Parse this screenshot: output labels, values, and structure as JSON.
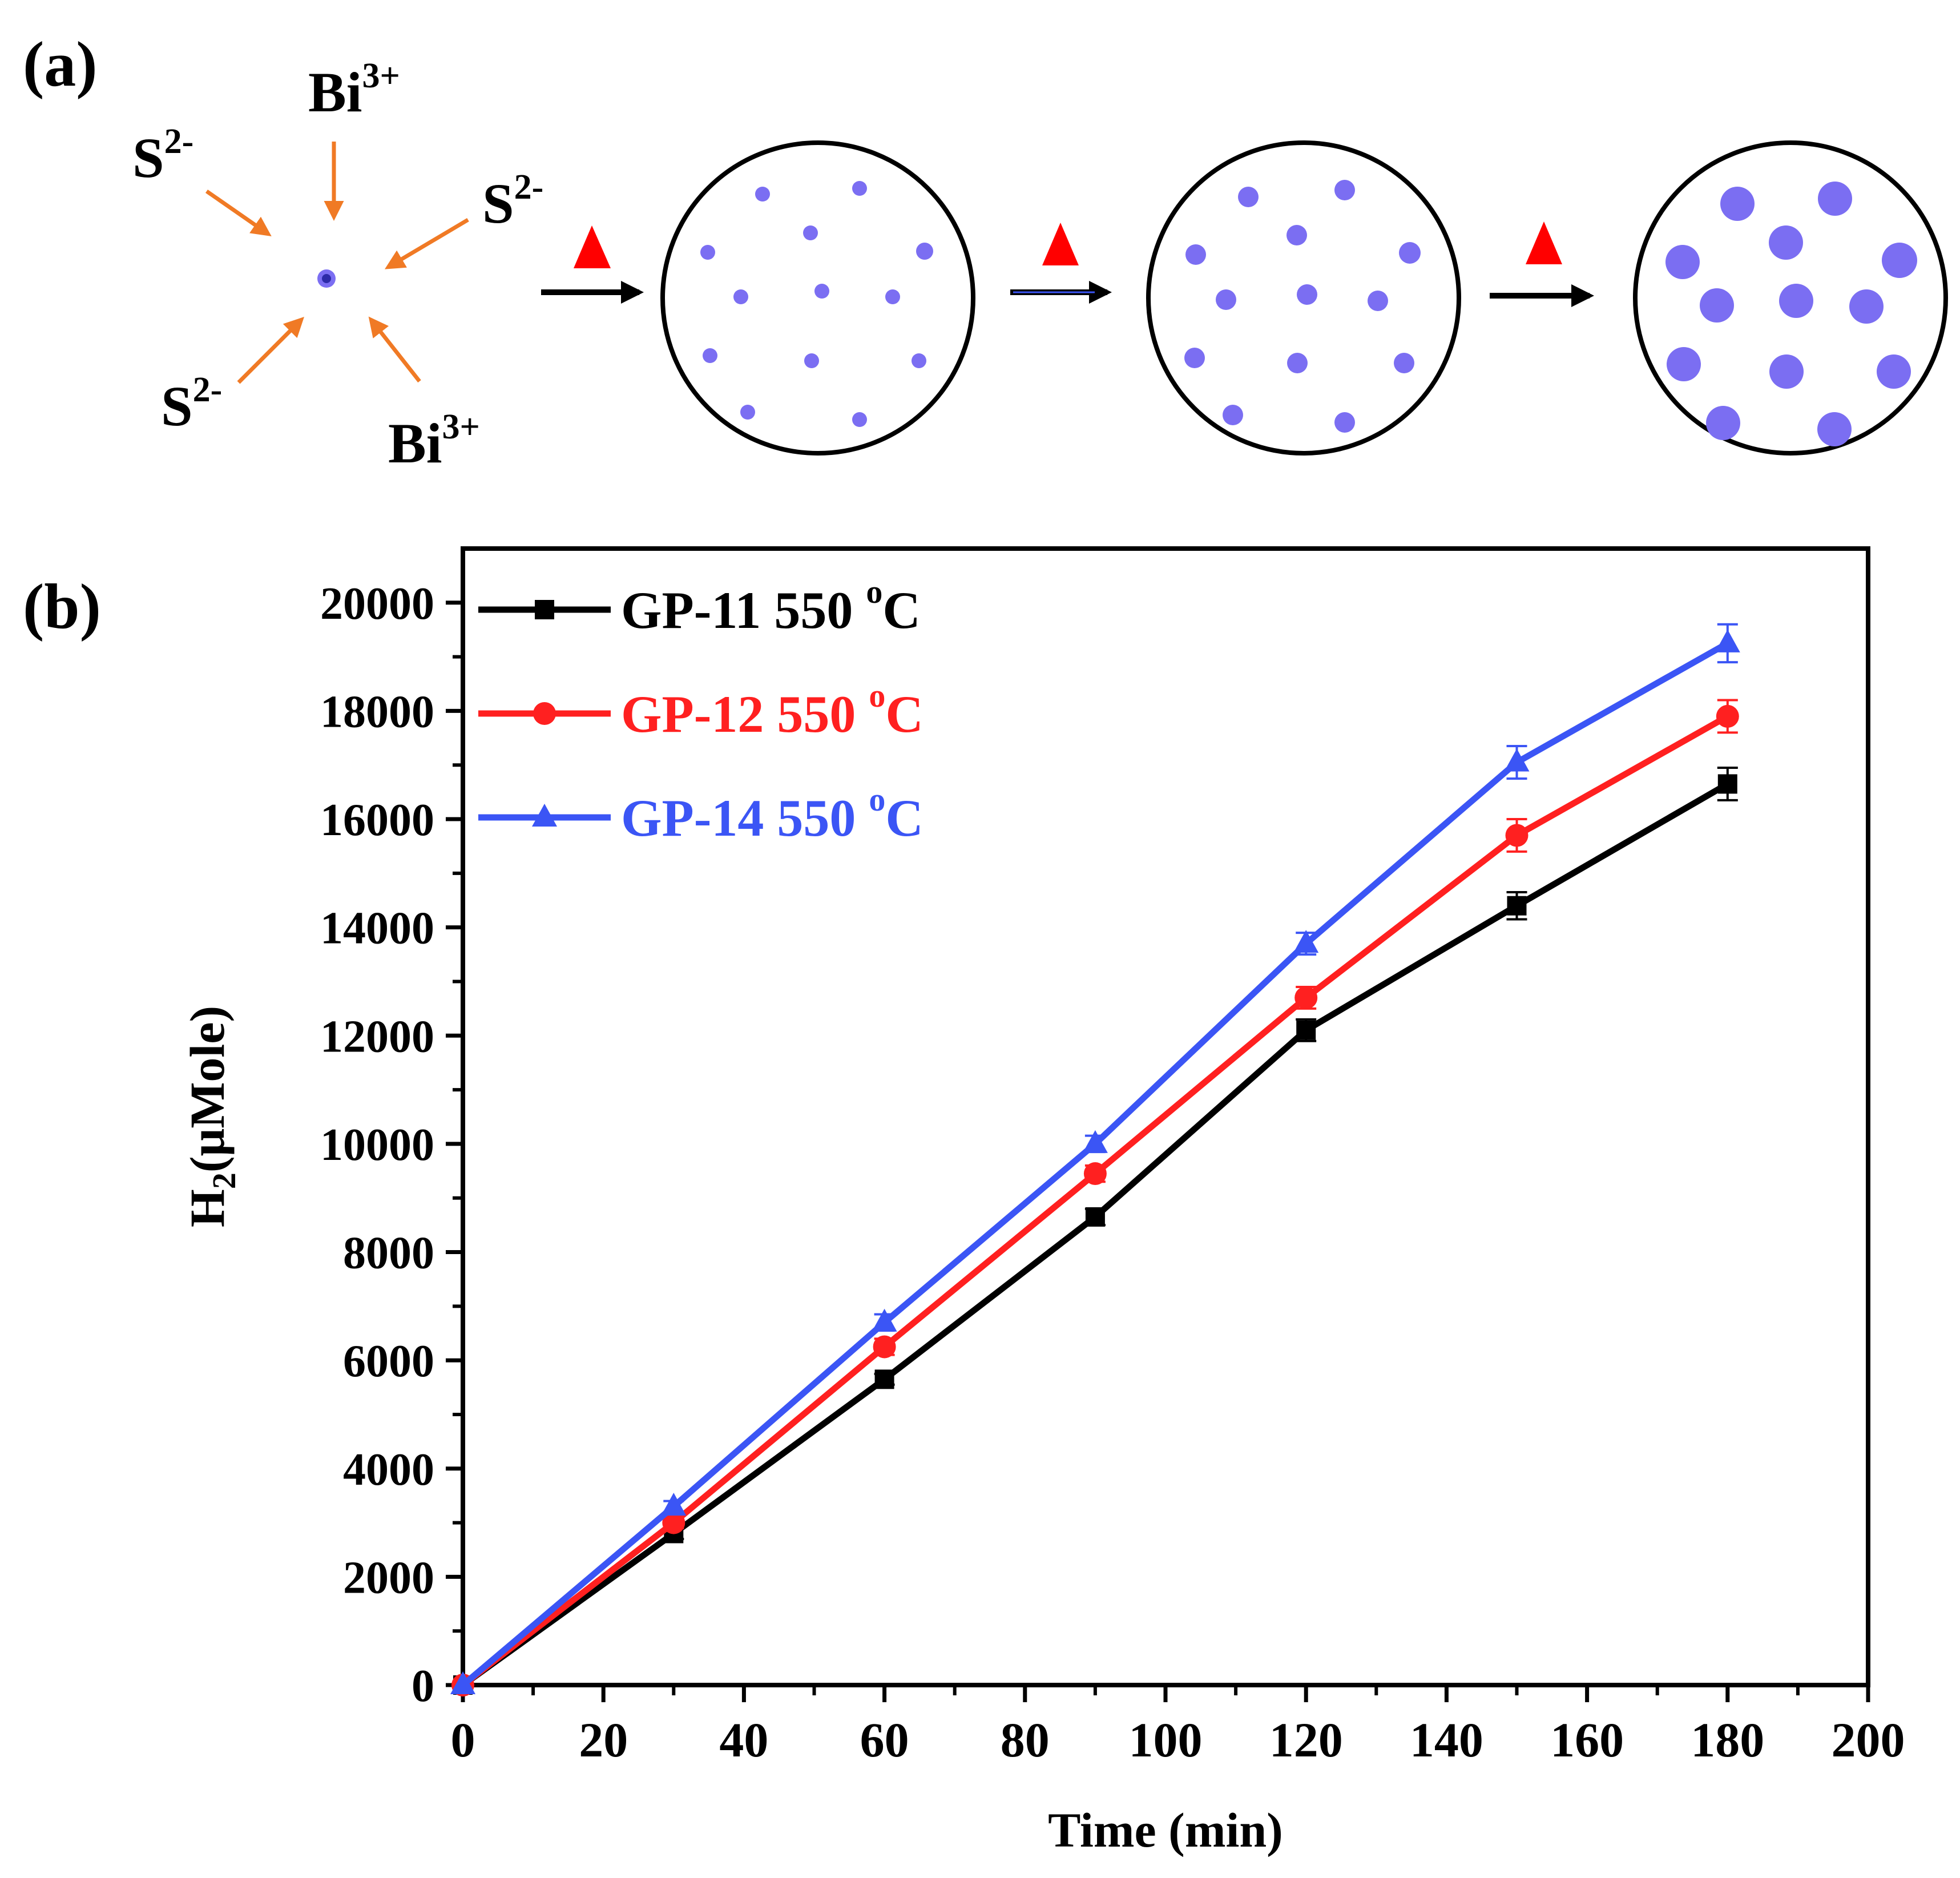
{
  "panel_a": {
    "label": "(a)",
    "ions": [
      {
        "base": "S",
        "sup": "2-"
      },
      {
        "base": "Bi",
        "sup": "3+"
      },
      {
        "base": "S",
        "sup": "2-"
      },
      {
        "base": "S",
        "sup": "2-"
      },
      {
        "base": "Bi",
        "sup": "3+"
      }
    ],
    "steps": [
      {
        "arrow": "heat",
        "particle_size": "small"
      },
      {
        "arrow": "heat",
        "particle_size": "medium"
      },
      {
        "arrow": "heat",
        "particle_size": "large"
      }
    ],
    "colors": {
      "arrow": "#f07a25",
      "heat": "#ff0000",
      "particle": "#7b6ef2",
      "nucleus": "#2d2aa8"
    }
  },
  "panel_b": {
    "label": "(b)",
    "chart_data": {
      "type": "line",
      "xlabel": "Time (min)",
      "ylabel_main": "H",
      "ylabel_sub": "2",
      "ylabel_rest": "(μMole)",
      "xlim": [
        0,
        200
      ],
      "ylim": [
        0,
        21000
      ],
      "xticks": [
        0,
        20,
        40,
        60,
        80,
        100,
        120,
        140,
        160,
        180,
        200
      ],
      "yticks": [
        0,
        2000,
        4000,
        6000,
        8000,
        10000,
        12000,
        14000,
        16000,
        18000,
        20000
      ],
      "x": [
        0,
        30,
        60,
        90,
        120,
        150,
        180
      ],
      "legend_position": "top-left",
      "series": [
        {
          "name": "GP-11 550",
          "suffix": "C",
          "degree": "o",
          "color": "#000000",
          "marker": "square",
          "values": [
            0,
            2800,
            5650,
            8650,
            12100,
            14400,
            16650
          ],
          "errors": [
            0,
            100,
            100,
            150,
            200,
            250,
            300
          ]
        },
        {
          "name": "GP-12 550",
          "suffix": "C",
          "degree": "o",
          "color": "#ff2020",
          "marker": "circle",
          "values": [
            0,
            3000,
            6250,
            9450,
            12700,
            15700,
            17900
          ],
          "errors": [
            0,
            100,
            150,
            150,
            200,
            300,
            300
          ]
        },
        {
          "name": "GP-14 550",
          "suffix": "C",
          "degree": "o",
          "color": "#3b55f5",
          "marker": "triangle",
          "values": [
            0,
            3300,
            6700,
            10000,
            13700,
            17050,
            19250
          ],
          "errors": [
            0,
            100,
            150,
            150,
            200,
            300,
            350
          ]
        }
      ]
    }
  }
}
